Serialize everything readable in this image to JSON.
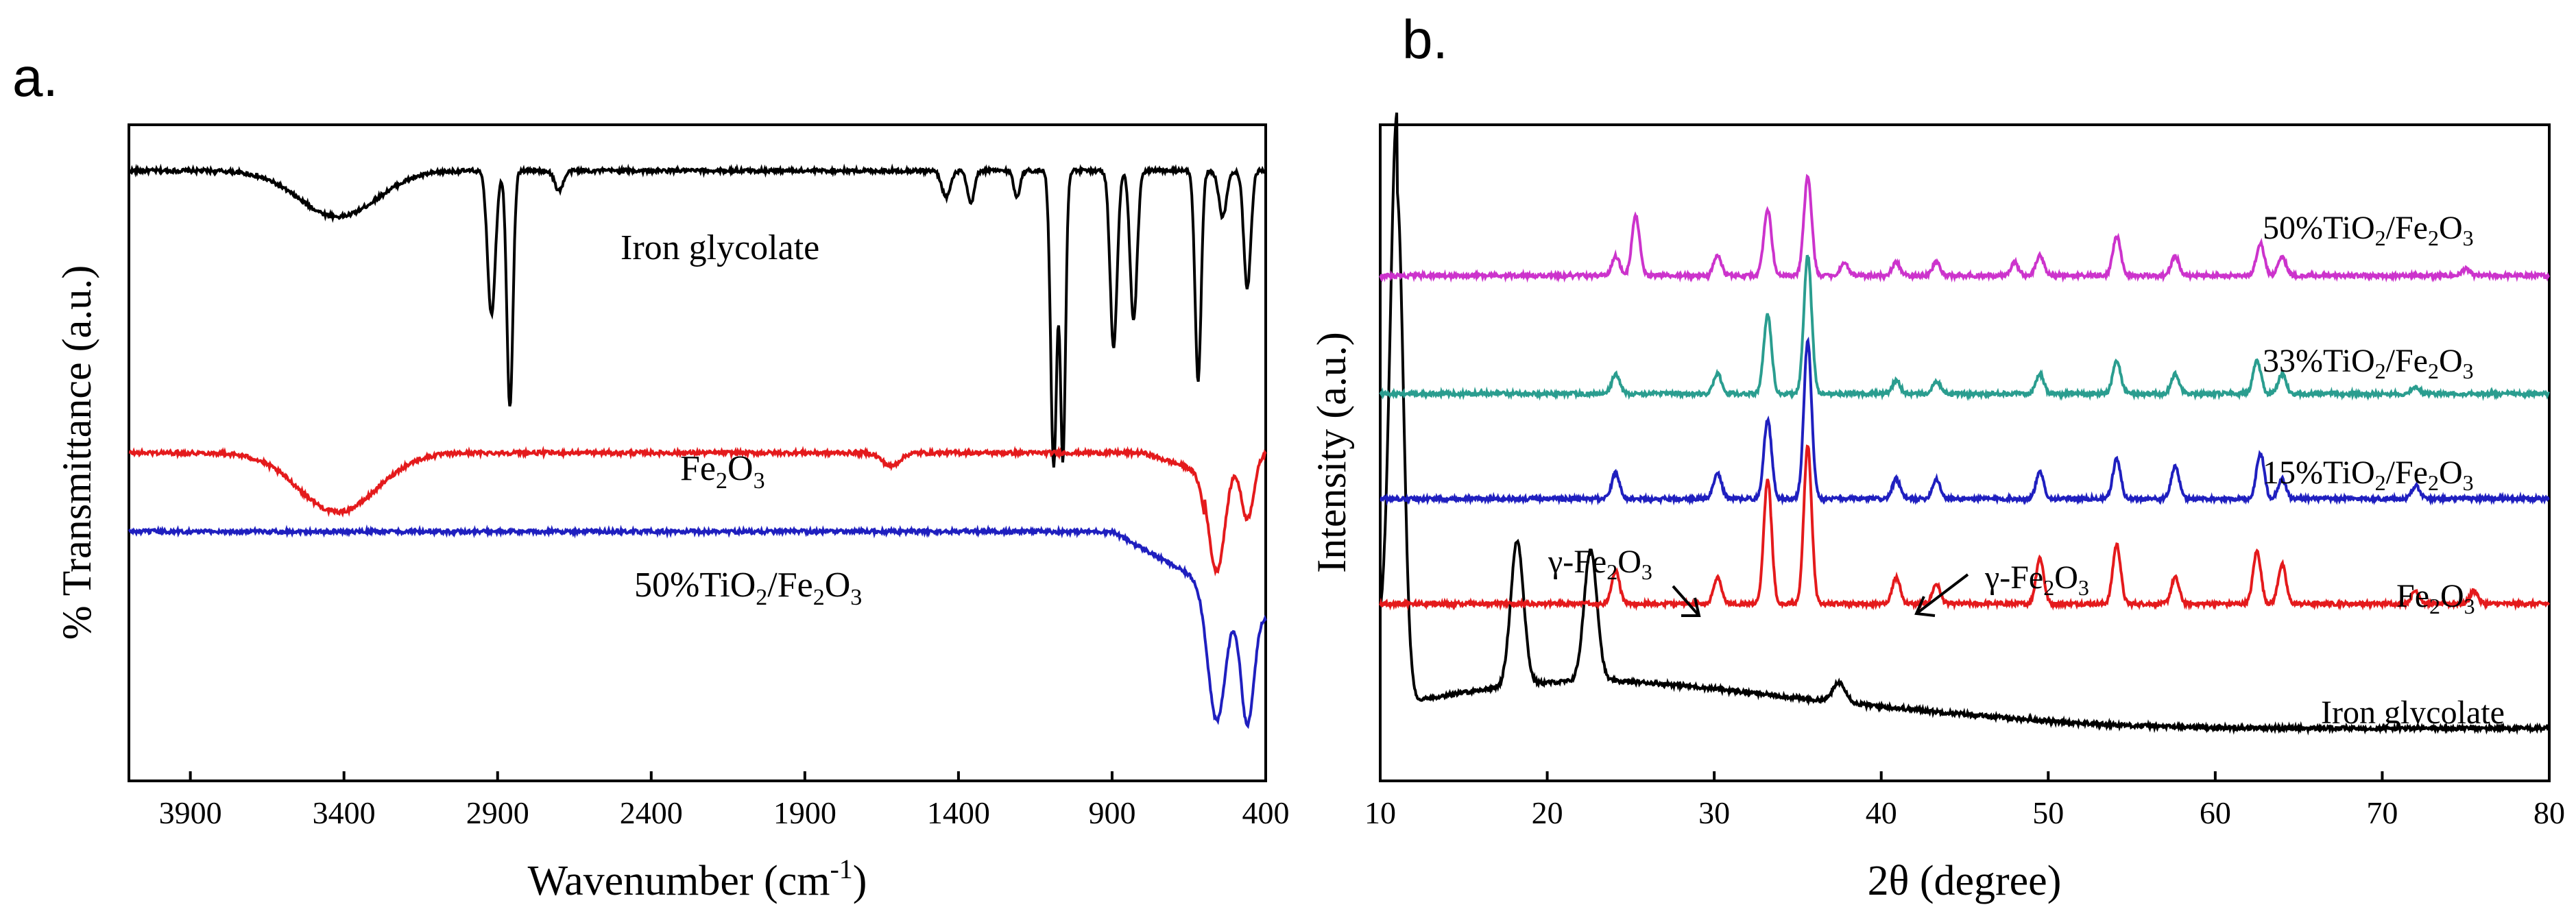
{
  "chart_data": [
    {
      "type": "line",
      "panel_label": "a.",
      "xlabel": "Wavenumber (cm",
      "xlabel_sup": "-1",
      "xlabel_close": ")",
      "ylabel": "% Transmittance (a.u.)",
      "xlim": [
        4100,
        400
      ],
      "x_ticks": [
        3900,
        3400,
        2900,
        2400,
        1900,
        1400,
        900,
        400
      ],
      "series": [
        {
          "name": "Iron glycolate",
          "color": "#000000",
          "baseline": 0.93,
          "features": [
            {
              "x": 3420,
              "depth": 0.07,
              "width": 180
            },
            {
              "x": 2920,
              "depth": 0.22,
              "width": 18
            },
            {
              "x": 2860,
              "depth": 0.36,
              "width": 14
            },
            {
              "x": 2700,
              "depth": 0.03,
              "width": 20
            },
            {
              "x": 1440,
              "depth": 0.04,
              "width": 20
            },
            {
              "x": 1360,
              "depth": 0.05,
              "width": 16
            },
            {
              "x": 1210,
              "depth": 0.04,
              "width": 14
            },
            {
              "x": 1090,
              "depth": 0.45,
              "width": 14
            },
            {
              "x": 1060,
              "depth": 0.44,
              "width": 12
            },
            {
              "x": 895,
              "depth": 0.27,
              "width": 16
            },
            {
              "x": 830,
              "depth": 0.23,
              "width": 16
            },
            {
              "x": 620,
              "depth": 0.32,
              "width": 14
            },
            {
              "x": 540,
              "depth": 0.07,
              "width": 18
            },
            {
              "x": 460,
              "depth": 0.18,
              "width": 16
            }
          ]
        },
        {
          "name": "Fe",
          "name_sub1": "2",
          "name_mid": "O",
          "name_sub2": "3",
          "color": "#e41a1c",
          "baseline": 0.5,
          "features": [
            {
              "x": 3420,
              "depth": 0.09,
              "width": 180
            },
            {
              "x": 1620,
              "depth": 0.02,
              "width": 40
            },
            {
              "x": 560,
              "depth": 0.18,
              "width": 40
            },
            {
              "x": 460,
              "depth": 0.1,
              "width": 30
            }
          ]
        },
        {
          "name": "50%TiO",
          "name_sub1": "2",
          "name_mid": "/Fe",
          "name_sub2": "2",
          "name_end": "O",
          "name_sub3": "3",
          "color": "#1f1fbf",
          "baseline": 0.38,
          "features": [
            {
              "x": 560,
              "depth": 0.2,
              "width": 40
            },
            {
              "x": 460,
              "depth": 0.18,
              "width": 30
            }
          ]
        }
      ]
    },
    {
      "type": "line",
      "panel_label": "b.",
      "xlabel": "2θ (degree)",
      "ylabel": "Intensity (a.u.)",
      "xlim": [
        10,
        80
      ],
      "x_ticks": [
        10,
        20,
        30,
        40,
        50,
        60,
        70,
        80
      ],
      "annotations": [
        "γ-Fe2O3",
        "γ-Fe2O3"
      ],
      "series": [
        {
          "name": "Iron glycolate",
          "color": "#000000",
          "peaks": [
            {
              "x": 11.0,
              "h": 0.78
            },
            {
              "x": 18.2,
              "h": 0.22
            },
            {
              "x": 22.6,
              "h": 0.2
            },
            {
              "x": 37.5,
              "h": 0.03
            }
          ]
        },
        {
          "name": "Fe2O3",
          "color": "#e41a1c",
          "peaks": [
            {
              "x": 24.1,
              "h": 0.05
            },
            {
              "x": 30.2,
              "h": 0.04
            },
            {
              "x": 33.2,
              "h": 0.19
            },
            {
              "x": 35.6,
              "h": 0.24
            },
            {
              "x": 40.9,
              "h": 0.04
            },
            {
              "x": 43.3,
              "h": 0.03
            },
            {
              "x": 49.5,
              "h": 0.07
            },
            {
              "x": 54.1,
              "h": 0.09
            },
            {
              "x": 57.6,
              "h": 0.04
            },
            {
              "x": 62.5,
              "h": 0.08
            },
            {
              "x": 64.0,
              "h": 0.06
            },
            {
              "x": 72.0,
              "h": 0.02
            },
            {
              "x": 75.5,
              "h": 0.02
            }
          ]
        },
        {
          "name": "15%TiO2/Fe2O3",
          "color": "#1f1fbf",
          "peaks": [
            {
              "x": 24.1,
              "h": 0.04
            },
            {
              "x": 30.2,
              "h": 0.04
            },
            {
              "x": 33.2,
              "h": 0.12
            },
            {
              "x": 35.6,
              "h": 0.24
            },
            {
              "x": 40.9,
              "h": 0.03
            },
            {
              "x": 43.3,
              "h": 0.03
            },
            {
              "x": 49.5,
              "h": 0.04
            },
            {
              "x": 54.1,
              "h": 0.06
            },
            {
              "x": 57.6,
              "h": 0.05
            },
            {
              "x": 62.7,
              "h": 0.07
            },
            {
              "x": 64.0,
              "h": 0.03
            },
            {
              "x": 72.0,
              "h": 0.02
            }
          ]
        },
        {
          "name": "33%TiO2/Fe2O3",
          "color": "#2a9d8f",
          "peaks": [
            {
              "x": 24.1,
              "h": 0.03
            },
            {
              "x": 30.2,
              "h": 0.03
            },
            {
              "x": 33.2,
              "h": 0.12
            },
            {
              "x": 35.6,
              "h": 0.21
            },
            {
              "x": 40.9,
              "h": 0.02
            },
            {
              "x": 43.3,
              "h": 0.02
            },
            {
              "x": 49.5,
              "h": 0.03
            },
            {
              "x": 54.1,
              "h": 0.05
            },
            {
              "x": 57.6,
              "h": 0.03
            },
            {
              "x": 62.5,
              "h": 0.05
            },
            {
              "x": 64.0,
              "h": 0.03
            },
            {
              "x": 72.0,
              "h": 0.01
            }
          ]
        },
        {
          "name": "50%TiO2/Fe2O3",
          "color": "#cc33cc",
          "peaks": [
            {
              "x": 24.1,
              "h": 0.03
            },
            {
              "x": 25.3,
              "h": 0.09
            },
            {
              "x": 30.2,
              "h": 0.03
            },
            {
              "x": 33.2,
              "h": 0.1
            },
            {
              "x": 35.6,
              "h": 0.15
            },
            {
              "x": 37.8,
              "h": 0.02
            },
            {
              "x": 40.9,
              "h": 0.02
            },
            {
              "x": 43.3,
              "h": 0.02
            },
            {
              "x": 48.0,
              "h": 0.02
            },
            {
              "x": 49.5,
              "h": 0.03
            },
            {
              "x": 54.1,
              "h": 0.06
            },
            {
              "x": 57.6,
              "h": 0.03
            },
            {
              "x": 62.7,
              "h": 0.05
            },
            {
              "x": 64.0,
              "h": 0.03
            },
            {
              "x": 75.0,
              "h": 0.01
            }
          ]
        }
      ]
    }
  ]
}
